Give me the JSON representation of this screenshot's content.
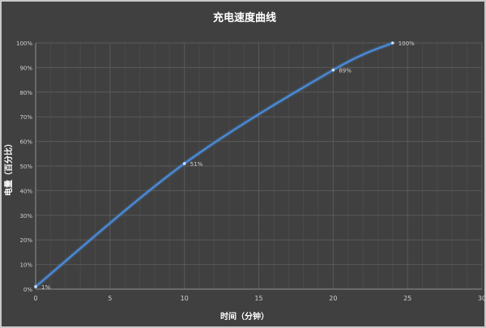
{
  "chart_data": {
    "type": "line",
    "title": "充电速度曲线",
    "xlabel": "时间（分钟）",
    "ylabel": "电量（百分比）",
    "xlim": [
      0,
      30
    ],
    "ylim": [
      0,
      100
    ],
    "x_ticks": [
      "0",
      "5",
      "10",
      "15",
      "20",
      "25",
      "30"
    ],
    "y_ticks": [
      "0%",
      "10%",
      "20%",
      "30%",
      "40%",
      "50%",
      "60%",
      "70%",
      "80%",
      "90%",
      "100%"
    ],
    "grid": true,
    "series": [
      {
        "x": [
          0,
          10,
          20,
          24
        ],
        "y": [
          1,
          51,
          89,
          100
        ],
        "labels": [
          "1%",
          "51%",
          "89%",
          "100%"
        ],
        "color": "#4a8fe0"
      }
    ],
    "colors": {
      "background": "#404040",
      "grid_major": "#5a5a5a",
      "grid_minor": "#4a4a4a",
      "text": "#d0d0d0",
      "title": "#ffffff"
    }
  }
}
